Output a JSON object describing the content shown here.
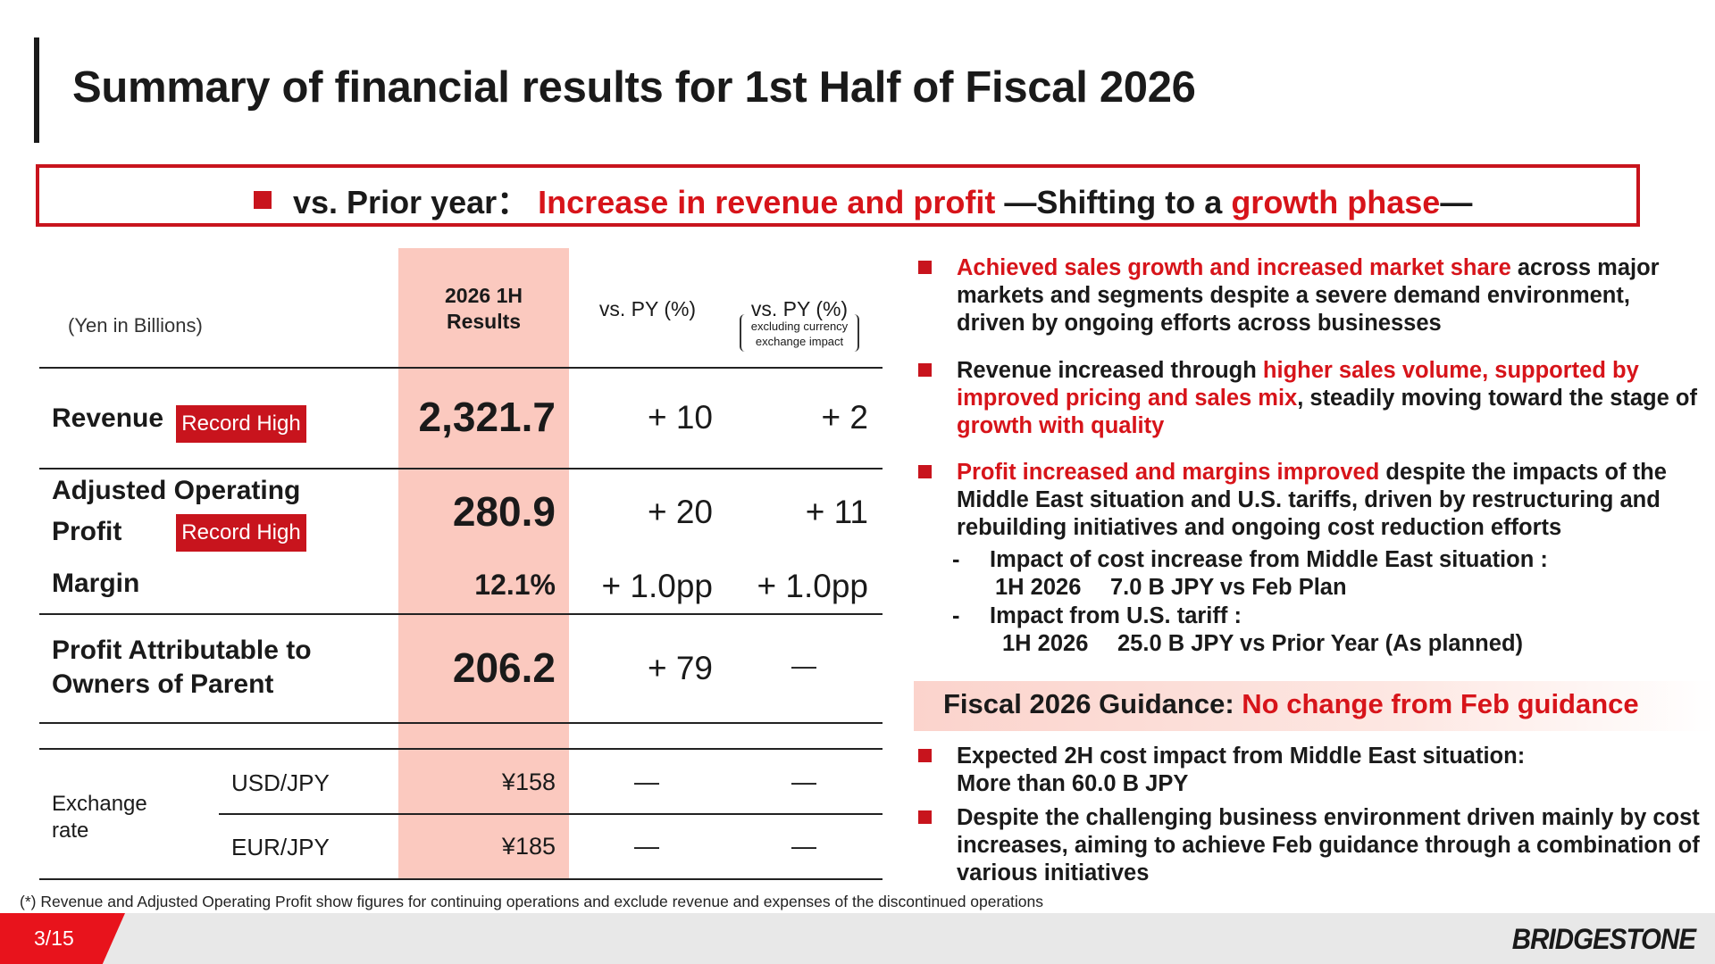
{
  "title": "Summary of financial results for 1st Half of Fiscal 2026",
  "banner": {
    "prefix": "vs. Prior year：",
    "highlight1": "Increase in revenue and profit",
    "middle": " —Shifting to a ",
    "highlight2": "growth phase",
    "suffix": "—"
  },
  "table": {
    "unit_label": "(Yen in Billions)",
    "col_results_line1": "2026 1H",
    "col_results_line2": "Results",
    "col_vspy": "vs. PY (%)",
    "col_vspy_ex": "vs. PY (%)",
    "col_vspy_ex_note_line1": "excluding currency",
    "col_vspy_ex_note_line2": "exchange impact",
    "record_high": "Record High",
    "revenue": {
      "label": "Revenue",
      "value": "2,321.7",
      "vs_py": "+ 10",
      "vs_py_ex": "+ 2"
    },
    "aop": {
      "label_line1": "Adjusted Operating",
      "label_line2": "Profit",
      "value": "280.9",
      "vs_py": "+ 20",
      "vs_py_ex": "+ 11"
    },
    "margin": {
      "label": "Margin",
      "value": "12.1%",
      "vs_py": "+ 1.0pp",
      "vs_py_ex": "+ 1.0pp"
    },
    "profit_parent": {
      "label_line1": "Profit Attributable to",
      "label_line2": "Owners of Parent",
      "value": "206.2",
      "vs_py": "+ 79",
      "vs_py_ex": "—"
    },
    "exchange": {
      "label_line1": "Exchange",
      "label_line2": "rate",
      "usd": {
        "label": "USD/JPY",
        "value": "¥158",
        "vs_py": "—",
        "vs_py_ex": "—"
      },
      "eur": {
        "label": "EUR/JPY",
        "value": "¥185",
        "vs_py": "—",
        "vs_py_ex": "—"
      }
    }
  },
  "bullets": {
    "b1_red": "Achieved sales growth and increased market share",
    "b1_rest1": " across major",
    "b1_line2": "markets and segments despite a severe demand environment,",
    "b1_line3": "driven by ongoing efforts across businesses",
    "b2_start": "Revenue increased through ",
    "b2_red1": "higher sales volume, supported by",
    "b2_red2": "improved pricing and sales mix",
    "b2_rest2": ", steadily moving toward the stage of",
    "b2_red3": "growth with quality",
    "b3_red": "Profit increased and margins improved",
    "b3_rest1": " despite the impacts of the",
    "b3_line2": "Middle East situation and U.S. tariffs, driven by restructuring and",
    "b3_line3": "rebuilding initiatives and ongoing cost reduction efforts",
    "sub1_dash": "-",
    "sub1_line1": "Impact of cost increase from Middle East situation :",
    "sub1_line2": "1H 2026　 7.0 B JPY vs Feb Plan",
    "sub2_dash": "-",
    "sub2_line1": "Impact from U.S. tariff :",
    "sub2_line2": "1H 2026　 25.0 B JPY vs Prior Year (As planned)"
  },
  "guidance": {
    "prefix": "Fiscal 2026 Guidance: ",
    "red": "No change from Feb guidance",
    "g1_line1": "Expected 2H cost impact from Middle East situation:",
    "g1_line2": "More than 60.0 B JPY",
    "g2_line1": "Despite the challenging business environment driven mainly by cost",
    "g2_line2": "increases, aiming to achieve Feb guidance through a combination of",
    "g2_line3": "various initiatives"
  },
  "footnote": "(*) Revenue and Adjusted Operating Profit show figures for continuing operations and exclude revenue and expenses of the discontinued operations",
  "footer": {
    "page": "3/15",
    "logo": "BRIDGESTONE"
  },
  "colors": {
    "accent_red": "#d7141a",
    "highlight_column": "#fbc9bf",
    "footer_gray": "#e8e8e8"
  }
}
